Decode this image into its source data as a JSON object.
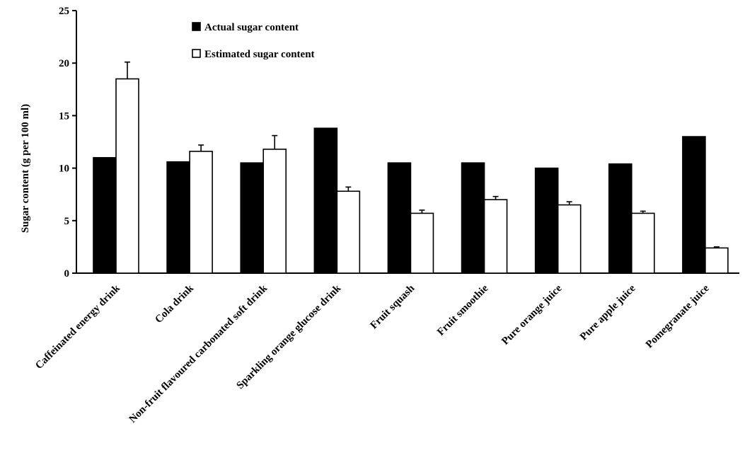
{
  "chart_data": {
    "type": "bar",
    "title": "",
    "xlabel": "",
    "ylabel": "Sugar content (g per 100 ml)",
    "ylim": [
      0,
      25
    ],
    "yticks": [
      0,
      5,
      10,
      15,
      20,
      25
    ],
    "grid": false,
    "legend_position": "top-center",
    "categories": [
      "Caffeinated energy drink",
      "Cola drink",
      "Non-fruit flavoured carbonated soft drink",
      "Sparkling orange glucose drink",
      "Fruit squash",
      "Fruit smoothie",
      "Pure orange juice",
      "Pure apple juice",
      "Pomegranate juice"
    ],
    "series": [
      {
        "name": "Actual sugar content",
        "color": "#000000",
        "values": [
          11.0,
          10.6,
          10.5,
          13.8,
          10.5,
          10.5,
          10.0,
          10.4,
          13.0
        ],
        "errors": [
          0,
          0,
          0,
          0,
          0,
          0,
          0,
          0,
          0
        ]
      },
      {
        "name": "Estimated sugar content",
        "color": "#ffffff",
        "values": [
          18.5,
          11.6,
          11.8,
          7.8,
          5.7,
          7.0,
          6.5,
          5.7,
          2.4
        ],
        "errors": [
          1.6,
          0.6,
          1.3,
          0.4,
          0.3,
          0.3,
          0.3,
          0.2,
          0.1
        ]
      }
    ]
  }
}
